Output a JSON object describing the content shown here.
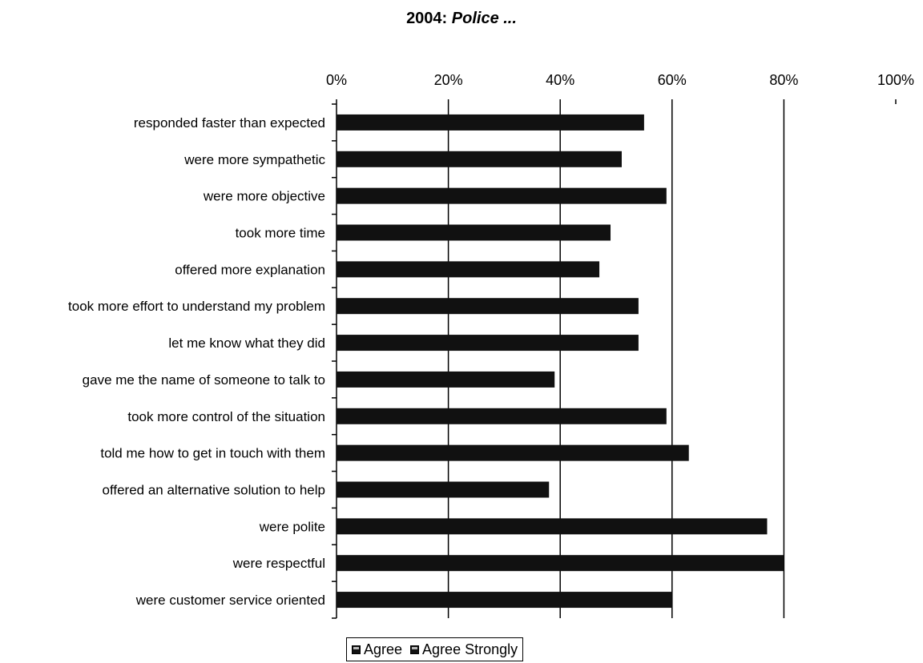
{
  "title": {
    "prefix": "2004:",
    "emphasis": "Police ..."
  },
  "chart_data": {
    "type": "bar",
    "orientation": "horizontal",
    "title": "2004: Police ...",
    "categories": [
      "responded faster than expected",
      "were more sympathetic",
      "were more objective",
      "took more time",
      "offered more explanation",
      "took more effort to understand my problem",
      "let me know what they did",
      "gave me the name of someone to talk to",
      "took more control of the situation",
      "told me how to get in touch with them",
      "offered an alternative solution to help",
      "were polite",
      "were respectful",
      "were customer service oriented"
    ],
    "series": [
      {
        "name": "Agree",
        "values": [
          55,
          51,
          59,
          49,
          47,
          54,
          54,
          39,
          59,
          63,
          38,
          77,
          80,
          60
        ]
      }
    ],
    "xlim": [
      0,
      100
    ],
    "xticks": [
      "0%",
      "20%",
      "40%",
      "60%",
      "80%",
      "100%"
    ],
    "grid": true,
    "legend": {
      "position": "bottom",
      "entries": [
        "Agree",
        "Agree Strongly"
      ]
    },
    "bar_color": "#111111"
  }
}
